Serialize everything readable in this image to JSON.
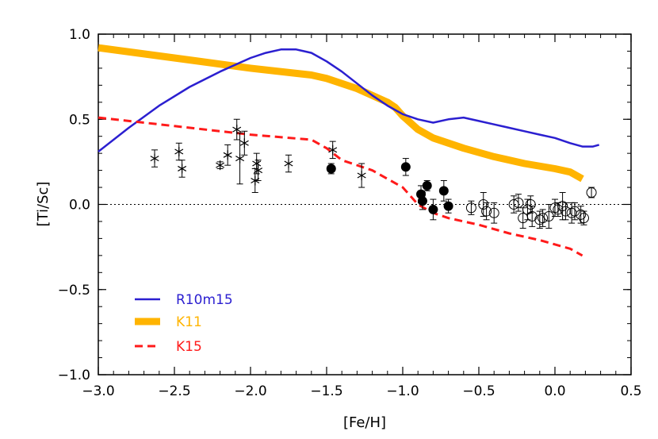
{
  "chart_data": {
    "type": "line",
    "xlabel": "[Fe/H]",
    "ylabel": "[Ti/Sc]",
    "xlim": [
      -3.0,
      0.5
    ],
    "ylim": [
      -1.0,
      1.0
    ],
    "x_ticks": [
      "−3.0",
      "−2.5",
      "−2.0",
      "−1.5",
      "−1.0",
      "−0.5",
      "0.0",
      "0.5"
    ],
    "y_ticks": [
      "−1.0",
      "−0.5",
      "0.0",
      "0.5",
      "1.0"
    ],
    "legend_position": "lower-left",
    "reference_line": {
      "y": 0.0,
      "style": "dotted"
    },
    "series": [
      {
        "name": "R10m15",
        "color": "#2b1fd0",
        "style": "solid",
        "points": [
          [
            -3.0,
            0.31
          ],
          [
            -2.8,
            0.45
          ],
          [
            -2.6,
            0.58
          ],
          [
            -2.4,
            0.69
          ],
          [
            -2.2,
            0.78
          ],
          [
            -2.0,
            0.86
          ],
          [
            -1.9,
            0.89
          ],
          [
            -1.8,
            0.91
          ],
          [
            -1.7,
            0.91
          ],
          [
            -1.6,
            0.89
          ],
          [
            -1.5,
            0.84
          ],
          [
            -1.4,
            0.78
          ],
          [
            -1.3,
            0.71
          ],
          [
            -1.2,
            0.64
          ],
          [
            -1.1,
            0.58
          ],
          [
            -1.0,
            0.53
          ],
          [
            -0.9,
            0.5
          ],
          [
            -0.8,
            0.48
          ],
          [
            -0.7,
            0.5
          ],
          [
            -0.6,
            0.51
          ],
          [
            -0.5,
            0.49
          ],
          [
            -0.4,
            0.47
          ],
          [
            -0.3,
            0.45
          ],
          [
            -0.2,
            0.43
          ],
          [
            -0.1,
            0.41
          ],
          [
            0.0,
            0.39
          ],
          [
            0.1,
            0.36
          ],
          [
            0.18,
            0.34
          ],
          [
            0.25,
            0.34
          ],
          [
            0.29,
            0.35
          ]
        ]
      },
      {
        "name": "K11",
        "color": "#ffb400",
        "style": "thick",
        "points": [
          [
            -3.0,
            0.92
          ],
          [
            -2.5,
            0.86
          ],
          [
            -2.0,
            0.8
          ],
          [
            -1.6,
            0.76
          ],
          [
            -1.5,
            0.74
          ],
          [
            -1.3,
            0.68
          ],
          [
            -1.1,
            0.6
          ],
          [
            -1.05,
            0.57
          ],
          [
            -1.0,
            0.52
          ],
          [
            -0.9,
            0.44
          ],
          [
            -0.8,
            0.39
          ],
          [
            -0.6,
            0.33
          ],
          [
            -0.4,
            0.28
          ],
          [
            -0.2,
            0.24
          ],
          [
            0.0,
            0.21
          ],
          [
            0.1,
            0.19
          ],
          [
            0.18,
            0.15
          ]
        ]
      },
      {
        "name": "K15",
        "color": "#ff1a1a",
        "style": "dashed",
        "points": [
          [
            -3.0,
            0.51
          ],
          [
            -2.5,
            0.46
          ],
          [
            -2.0,
            0.41
          ],
          [
            -1.6,
            0.38
          ],
          [
            -1.5,
            0.33
          ],
          [
            -1.4,
            0.26
          ],
          [
            -1.2,
            0.2
          ],
          [
            -1.0,
            0.1
          ],
          [
            -0.9,
            0.0
          ],
          [
            -0.8,
            -0.05
          ],
          [
            -0.7,
            -0.08
          ],
          [
            -0.5,
            -0.12
          ],
          [
            -0.3,
            -0.17
          ],
          [
            -0.1,
            -0.21
          ],
          [
            0.1,
            -0.26
          ],
          [
            0.18,
            -0.3
          ]
        ]
      }
    ],
    "observations": {
      "asterisk": [
        {
          "x": -2.63,
          "y": 0.27,
          "err": 0.05
        },
        {
          "x": -2.47,
          "y": 0.31,
          "err": 0.05
        },
        {
          "x": -2.45,
          "y": 0.21,
          "err": 0.05
        },
        {
          "x": -2.2,
          "y": 0.23,
          "err": 0.02
        },
        {
          "x": -2.15,
          "y": 0.29,
          "err": 0.06
        },
        {
          "x": -2.09,
          "y": 0.44,
          "err": 0.06
        },
        {
          "x": -2.07,
          "y": 0.27,
          "err": 0.15
        },
        {
          "x": -2.04,
          "y": 0.36,
          "err": 0.07
        },
        {
          "x": -1.97,
          "y": 0.14,
          "err": 0.07
        },
        {
          "x": -1.96,
          "y": 0.24,
          "err": 0.06
        },
        {
          "x": -1.95,
          "y": 0.2,
          "err": 0.06
        },
        {
          "x": -1.75,
          "y": 0.24,
          "err": 0.05
        },
        {
          "x": -1.46,
          "y": 0.32,
          "err": 0.05
        },
        {
          "x": -1.27,
          "y": 0.17,
          "err": 0.07
        }
      ],
      "filled_circle": [
        {
          "x": -1.47,
          "y": 0.21,
          "err": 0.03
        },
        {
          "x": -0.98,
          "y": 0.22,
          "err": 0.05
        },
        {
          "x": -0.88,
          "y": 0.06,
          "err": 0.05
        },
        {
          "x": -0.87,
          "y": 0.02,
          "err": 0.05
        },
        {
          "x": -0.84,
          "y": 0.11,
          "err": 0.03
        },
        {
          "x": -0.8,
          "y": -0.03,
          "err": 0.06
        },
        {
          "x": -0.73,
          "y": 0.08,
          "err": 0.06
        },
        {
          "x": -0.7,
          "y": -0.01,
          "err": 0.04
        }
      ],
      "open_circle": [
        {
          "x": -0.55,
          "y": -0.02,
          "err": 0.04
        },
        {
          "x": -0.47,
          "y": 0.0,
          "err": 0.07
        },
        {
          "x": -0.45,
          "y": -0.04,
          "err": 0.05
        },
        {
          "x": -0.4,
          "y": -0.05,
          "err": 0.06
        },
        {
          "x": -0.27,
          "y": 0.0,
          "err": 0.05
        },
        {
          "x": -0.24,
          "y": 0.01,
          "err": 0.05
        },
        {
          "x": -0.21,
          "y": -0.08,
          "err": 0.06
        },
        {
          "x": -0.18,
          "y": -0.03,
          "err": 0.06
        },
        {
          "x": -0.16,
          "y": 0.0,
          "err": 0.05
        },
        {
          "x": -0.15,
          "y": -0.07,
          "err": 0.06
        },
        {
          "x": -0.1,
          "y": -0.09,
          "err": 0.05
        },
        {
          "x": -0.08,
          "y": -0.08,
          "err": 0.05
        },
        {
          "x": -0.04,
          "y": -0.07,
          "err": 0.07
        },
        {
          "x": 0.0,
          "y": -0.02,
          "err": 0.05
        },
        {
          "x": 0.02,
          "y": -0.03,
          "err": 0.04
        },
        {
          "x": 0.05,
          "y": -0.01,
          "err": 0.08
        },
        {
          "x": 0.07,
          "y": -0.04,
          "err": 0.05
        },
        {
          "x": 0.11,
          "y": -0.05,
          "err": 0.06
        },
        {
          "x": 0.13,
          "y": -0.04,
          "err": 0.05
        },
        {
          "x": 0.17,
          "y": -0.06,
          "err": 0.05
        },
        {
          "x": 0.19,
          "y": -0.08,
          "err": 0.04
        },
        {
          "x": 0.24,
          "y": 0.07,
          "err": 0.03
        }
      ]
    }
  }
}
